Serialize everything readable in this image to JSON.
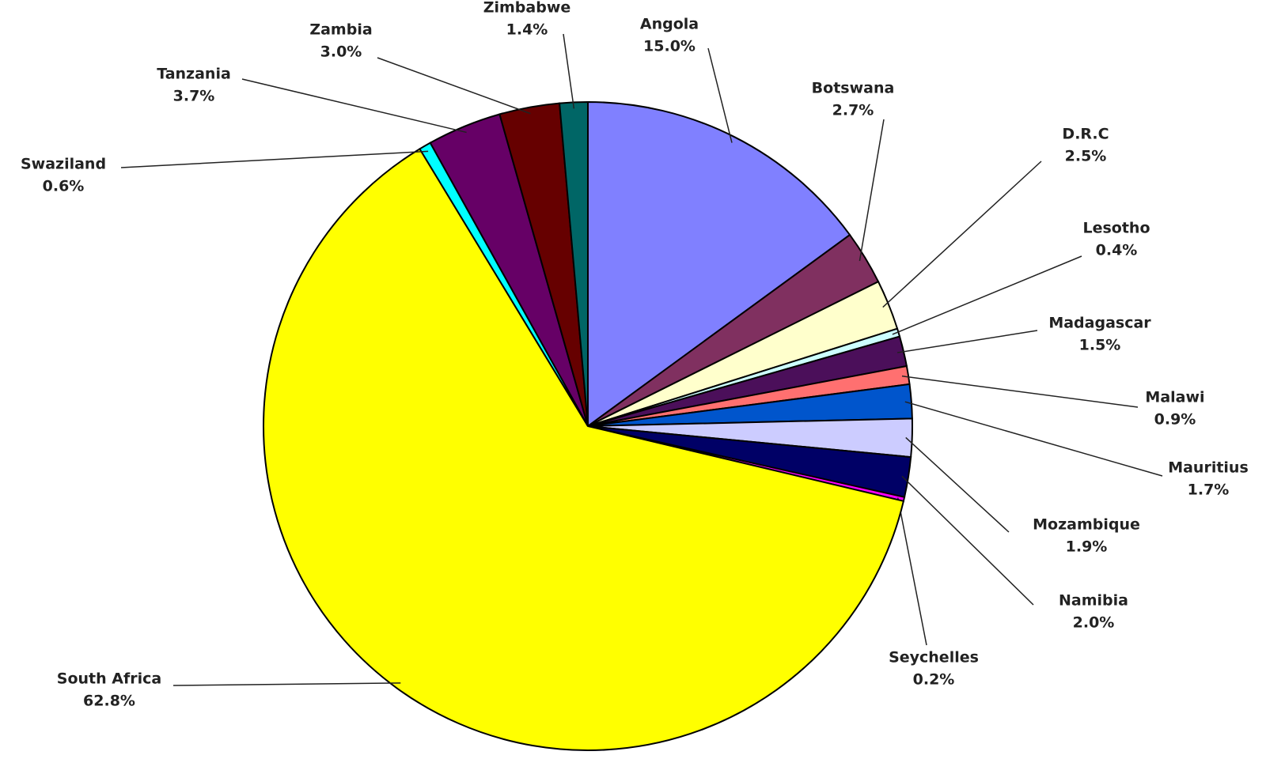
{
  "chart_data": {
    "type": "pie",
    "categories": [
      "Angola",
      "Botswana",
      "D.R.C",
      "Lesotho",
      "Madagascar",
      "Malawi",
      "Mauritius",
      "Mozambique",
      "Namibia",
      "Seychelles",
      "South Africa",
      "Swaziland",
      "Tanzania",
      "Zambia",
      "Zimbabwe"
    ],
    "values": [
      15.0,
      2.7,
      2.5,
      0.4,
      1.5,
      0.9,
      1.7,
      1.9,
      2.0,
      0.2,
      62.8,
      0.6,
      3.7,
      3.0,
      1.4
    ],
    "value_labels": [
      "15.0%",
      "2.7%",
      "2.5%",
      "0.4%",
      "1.5%",
      "0.9%",
      "1.7%",
      "1.9%",
      "2.0%",
      "0.2%",
      "62.8%",
      "0.6%",
      "3.7%",
      "3.0%",
      "1.4%"
    ],
    "colors": [
      "#8080ff",
      "#803060",
      "#ffffcc",
      "#ccffff",
      "#4b0f5a",
      "#ff7070",
      "#0055cc",
      "#ccccff",
      "#000066",
      "#ff00ff",
      "#ffff00",
      "#00ffff",
      "#660066",
      "#660000",
      "#006666"
    ]
  }
}
